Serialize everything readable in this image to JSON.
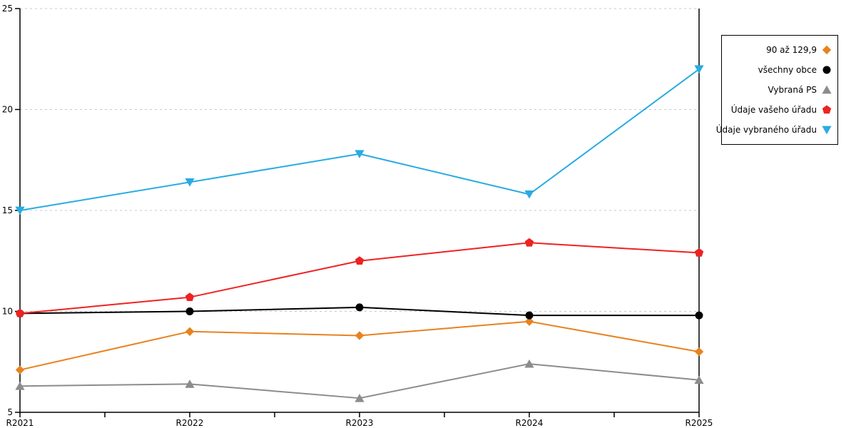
{
  "chart_data": {
    "type": "line",
    "title": "",
    "xlabel": "",
    "ylabel": "",
    "categories": [
      "R2021",
      "R2022",
      "R2023",
      "R2024",
      "R2025"
    ],
    "ylim": [
      5,
      25
    ],
    "yticks": [
      5,
      10,
      15,
      20,
      25
    ],
    "grid": "horizontal-dashed",
    "gridline_color": "#c9c9c9",
    "axis_color": "#000000",
    "legend_position": "right-boxed",
    "series": [
      {
        "name": "90 až 129,9",
        "color": "#e8821e",
        "marker": "diamond",
        "values": [
          7.1,
          9.0,
          8.8,
          9.5,
          8.0
        ]
      },
      {
        "name": "všechny obce",
        "color": "#000000",
        "marker": "circle",
        "values": [
          9.9,
          10.0,
          10.2,
          9.8,
          9.8
        ]
      },
      {
        "name": "Vybraná PS",
        "color": "#8c8c8c",
        "marker": "triangle-up",
        "values": [
          6.3,
          6.4,
          5.7,
          7.4,
          6.6
        ]
      },
      {
        "name": "Údaje vašeho úřadu",
        "color": "#ee2222",
        "marker": "pentagon",
        "values": [
          9.9,
          10.7,
          12.5,
          13.4,
          12.9
        ]
      },
      {
        "name": "Údaje vybraného úřadu",
        "color": "#29abe2",
        "marker": "triangle-down",
        "values": [
          15.0,
          16.4,
          17.8,
          15.8,
          22.0
        ]
      }
    ]
  }
}
